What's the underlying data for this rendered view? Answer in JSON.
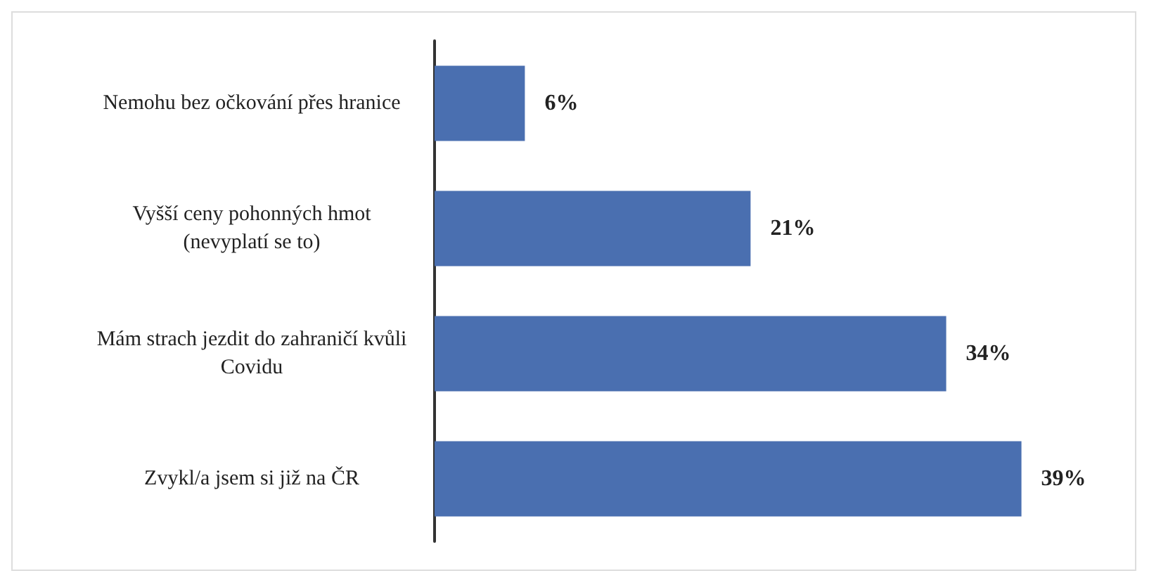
{
  "chart_data": {
    "type": "bar",
    "orientation": "horizontal",
    "categories": [
      "Nemohu bez očkování přes hranice",
      "Vyšší ceny pohonných hmot\n(nevyplatí se to)",
      "Mám strach jezdit do zahraničí kvůli\nCovidu",
      "Zvykl/a jsem si již na ČR"
    ],
    "values": [
      6,
      21,
      34,
      39
    ],
    "value_labels": [
      "6%",
      "21%",
      "34%",
      "39%"
    ],
    "color": "#4a6fb0",
    "tick_labels": "y"
  }
}
